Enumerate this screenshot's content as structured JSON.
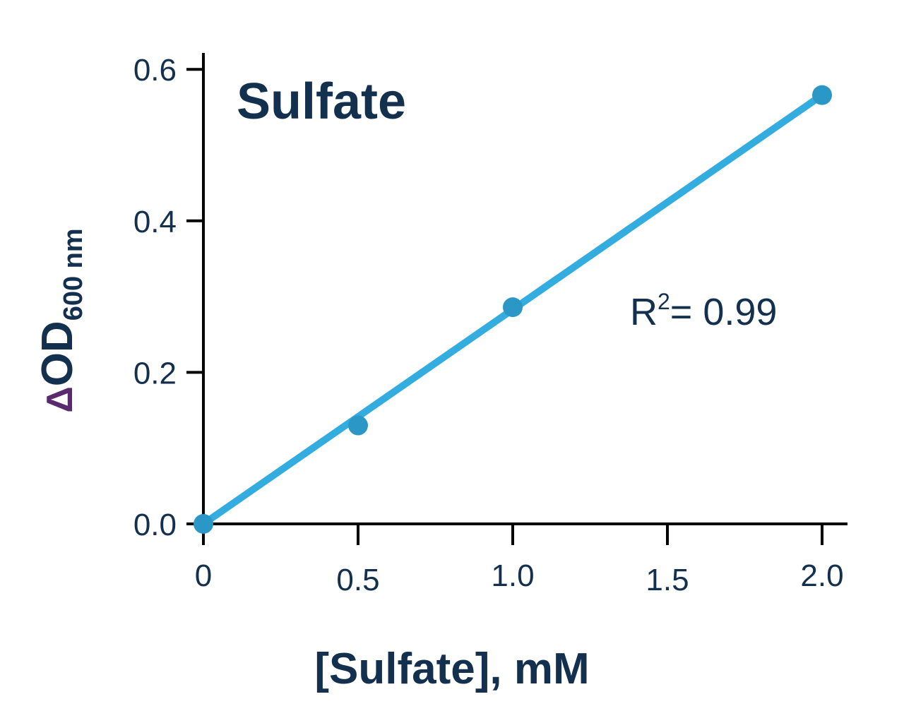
{
  "chart_data": {
    "type": "scatter",
    "title": "Sulfate",
    "xlabel": "[Sulfate], mM",
    "ylabel": {
      "symbol": "Δ",
      "main": "OD",
      "subscript": "600 nm"
    },
    "xlim": [
      0,
      2.1
    ],
    "ylim": [
      0,
      0.62
    ],
    "x_ticks": [
      0,
      0.5,
      1.0,
      1.5,
      2.0
    ],
    "x_tick_labels": [
      "0",
      "0.5",
      "1.0",
      "1.5",
      "2.0"
    ],
    "y_ticks": [
      0.0,
      0.2,
      0.4,
      0.6
    ],
    "y_tick_labels": [
      "0.0",
      "0.2",
      "0.4",
      "0.6"
    ],
    "grid": false,
    "series": [
      {
        "points": [
          {
            "x": 0,
            "y": 0.0
          },
          {
            "x": 0.5,
            "y": 0.13
          },
          {
            "x": 1.0,
            "y": 0.286
          },
          {
            "x": 2.0,
            "y": 0.566
          }
        ],
        "color": "#2a97c7"
      }
    ],
    "fit_line": {
      "x": [
        0,
        2.0
      ],
      "y": [
        0.0,
        0.566
      ],
      "color": "#33ace0"
    },
    "annotation": {
      "text": "R",
      "superscript": "2",
      "rest": "= 0.99"
    }
  }
}
